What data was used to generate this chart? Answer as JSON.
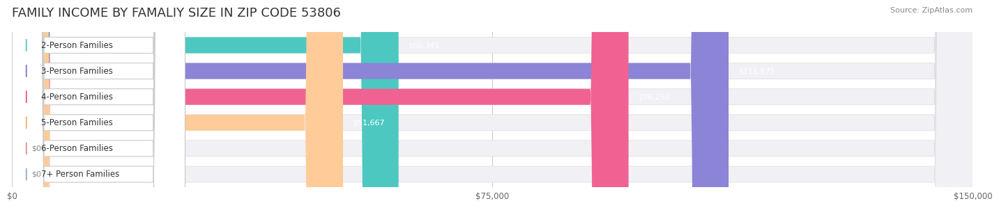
{
  "title": "FAMILY INCOME BY FAMALIY SIZE IN ZIP CODE 53806",
  "source": "Source: ZipAtlas.com",
  "categories": [
    "2-Person Families",
    "3-Person Families",
    "4-Person Families",
    "5-Person Families",
    "6-Person Families",
    "7+ Person Families"
  ],
  "values": [
    60341,
    111875,
    96250,
    51667,
    0,
    0
  ],
  "bar_colors": [
    "#4DC8C0",
    "#8B84D7",
    "#F06292",
    "#FFCC99",
    "#F4A0A0",
    "#A8C4E0"
  ],
  "label_colors": [
    "#4DC8C0",
    "#7B76C8",
    "#E8527A",
    "#F0B060",
    "#E88888",
    "#88AAD0"
  ],
  "bg_bar_color": "#F0F0F5",
  "max_value": 150000,
  "x_ticks": [
    0,
    75000,
    150000
  ],
  "x_tick_labels": [
    "$0",
    "$75,000",
    "$150,000"
  ],
  "value_labels": [
    "$60,341",
    "$111,875",
    "$96,250",
    "$51,667",
    "$0",
    "$0"
  ],
  "background_color": "#FFFFFF",
  "title_fontsize": 13,
  "bar_height": 0.62,
  "bar_gap": 0.1
}
